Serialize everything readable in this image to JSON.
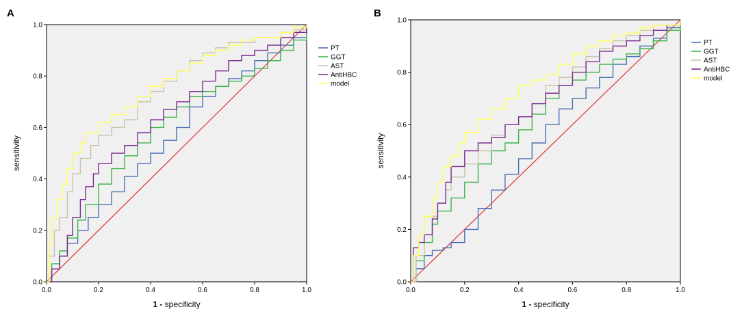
{
  "chart_data": [
    {
      "type": "line",
      "panel_label": "A",
      "xlabel_bold": "1 -",
      "xlabel_rest": " specificity",
      "ylabel": "sensitivity",
      "xlim": [
        0,
        1
      ],
      "ylim": [
        0,
        1
      ],
      "xticks": [
        "0.0",
        "0.2",
        "0.4",
        "0.6",
        "0.8",
        "1.0"
      ],
      "yticks": [
        "0.0",
        "0.2",
        "0.4",
        "0.6",
        "0.8",
        "1.0"
      ],
      "legend_position": "right",
      "reference_line": {
        "color": "#e03030",
        "points": [
          [
            0,
            0
          ],
          [
            1,
            1
          ]
        ]
      },
      "series": [
        {
          "name": "PT",
          "color": "#4a6fb5",
          "points": [
            [
              0,
              0
            ],
            [
              0.02,
              0.05
            ],
            [
              0.05,
              0.1
            ],
            [
              0.08,
              0.15
            ],
            [
              0.12,
              0.2
            ],
            [
              0.16,
              0.25
            ],
            [
              0.2,
              0.3
            ],
            [
              0.25,
              0.35
            ],
            [
              0.3,
              0.41
            ],
            [
              0.35,
              0.46
            ],
            [
              0.4,
              0.5
            ],
            [
              0.45,
              0.55
            ],
            [
              0.5,
              0.6
            ],
            [
              0.55,
              0.68
            ],
            [
              0.6,
              0.72
            ],
            [
              0.65,
              0.76
            ],
            [
              0.7,
              0.79
            ],
            [
              0.75,
              0.82
            ],
            [
              0.8,
              0.86
            ],
            [
              0.85,
              0.89
            ],
            [
              0.9,
              0.92
            ],
            [
              0.95,
              0.95
            ],
            [
              1,
              0.98
            ]
          ]
        },
        {
          "name": "GGT",
          "color": "#3cb44b",
          "points": [
            [
              0,
              0
            ],
            [
              0.02,
              0.07
            ],
            [
              0.05,
              0.12
            ],
            [
              0.08,
              0.17
            ],
            [
              0.12,
              0.24
            ],
            [
              0.15,
              0.3
            ],
            [
              0.2,
              0.38
            ],
            [
              0.25,
              0.44
            ],
            [
              0.3,
              0.49
            ],
            [
              0.35,
              0.54
            ],
            [
              0.4,
              0.6
            ],
            [
              0.45,
              0.64
            ],
            [
              0.5,
              0.68
            ],
            [
              0.55,
              0.72
            ],
            [
              0.6,
              0.74
            ],
            [
              0.65,
              0.76
            ],
            [
              0.7,
              0.78
            ],
            [
              0.75,
              0.8
            ],
            [
              0.8,
              0.83
            ],
            [
              0.85,
              0.86
            ],
            [
              0.9,
              0.9
            ],
            [
              0.95,
              0.94
            ],
            [
              1,
              1.0
            ]
          ]
        },
        {
          "name": "AST",
          "color": "#c8c3a8",
          "points": [
            [
              0,
              0
            ],
            [
              0.01,
              0.1
            ],
            [
              0.03,
              0.2
            ],
            [
              0.05,
              0.25
            ],
            [
              0.08,
              0.35
            ],
            [
              0.1,
              0.42
            ],
            [
              0.13,
              0.48
            ],
            [
              0.17,
              0.53
            ],
            [
              0.2,
              0.57
            ],
            [
              0.25,
              0.6
            ],
            [
              0.3,
              0.63
            ],
            [
              0.35,
              0.7
            ],
            [
              0.4,
              0.74
            ],
            [
              0.45,
              0.78
            ],
            [
              0.5,
              0.82
            ],
            [
              0.55,
              0.86
            ],
            [
              0.6,
              0.89
            ],
            [
              0.65,
              0.91
            ],
            [
              0.7,
              0.93
            ],
            [
              0.8,
              0.95
            ],
            [
              0.9,
              0.97
            ],
            [
              0.95,
              0.98
            ],
            [
              1,
              1.0
            ]
          ]
        },
        {
          "name": "AntiHBC",
          "color": "#7b2d8e",
          "points": [
            [
              0,
              0
            ],
            [
              0.02,
              0.05
            ],
            [
              0.05,
              0.1
            ],
            [
              0.08,
              0.18
            ],
            [
              0.1,
              0.25
            ],
            [
              0.13,
              0.32
            ],
            [
              0.15,
              0.37
            ],
            [
              0.18,
              0.42
            ],
            [
              0.2,
              0.46
            ],
            [
              0.25,
              0.5
            ],
            [
              0.3,
              0.53
            ],
            [
              0.35,
              0.58
            ],
            [
              0.4,
              0.63
            ],
            [
              0.45,
              0.67
            ],
            [
              0.5,
              0.7
            ],
            [
              0.55,
              0.74
            ],
            [
              0.6,
              0.78
            ],
            [
              0.65,
              0.82
            ],
            [
              0.7,
              0.86
            ],
            [
              0.75,
              0.88
            ],
            [
              0.8,
              0.9
            ],
            [
              0.85,
              0.92
            ],
            [
              0.9,
              0.95
            ],
            [
              0.95,
              0.97
            ],
            [
              1,
              1.0
            ]
          ]
        },
        {
          "name": "model",
          "color": "#ffff55",
          "points": [
            [
              0,
              0
            ],
            [
              0.01,
              0.15
            ],
            [
              0.02,
              0.25
            ],
            [
              0.04,
              0.32
            ],
            [
              0.06,
              0.38
            ],
            [
              0.08,
              0.44
            ],
            [
              0.1,
              0.5
            ],
            [
              0.13,
              0.54
            ],
            [
              0.15,
              0.58
            ],
            [
              0.2,
              0.62
            ],
            [
              0.25,
              0.65
            ],
            [
              0.3,
              0.68
            ],
            [
              0.35,
              0.72
            ],
            [
              0.4,
              0.76
            ],
            [
              0.45,
              0.79
            ],
            [
              0.5,
              0.82
            ],
            [
              0.55,
              0.85
            ],
            [
              0.6,
              0.88
            ],
            [
              0.65,
              0.9
            ],
            [
              0.7,
              0.92
            ],
            [
              0.75,
              0.94
            ],
            [
              0.8,
              0.95
            ],
            [
              0.9,
              0.97
            ],
            [
              0.95,
              0.99
            ],
            [
              1,
              1.0
            ]
          ]
        }
      ]
    },
    {
      "type": "line",
      "panel_label": "B",
      "xlabel_bold": "1 -",
      "xlabel_rest": " specificity",
      "ylabel": "sensitivity",
      "xlim": [
        0,
        1
      ],
      "ylim": [
        0,
        1
      ],
      "xticks": [
        "0.0",
        "0.2",
        "0.4",
        "0.6",
        "0.8",
        "1.0"
      ],
      "yticks": [
        "0.0",
        "0.2",
        "0.4",
        "0.6",
        "0.8",
        "1.0"
      ],
      "legend_position": "right",
      "reference_line": {
        "color": "#e03030",
        "points": [
          [
            0,
            0
          ],
          [
            1,
            1
          ]
        ]
      },
      "series": [
        {
          "name": "PT",
          "color": "#4a6fb5",
          "points": [
            [
              0,
              0
            ],
            [
              0.02,
              0.05
            ],
            [
              0.05,
              0.1
            ],
            [
              0.08,
              0.12
            ],
            [
              0.12,
              0.13
            ],
            [
              0.15,
              0.15
            ],
            [
              0.2,
              0.2
            ],
            [
              0.25,
              0.28
            ],
            [
              0.3,
              0.35
            ],
            [
              0.35,
              0.41
            ],
            [
              0.4,
              0.47
            ],
            [
              0.45,
              0.53
            ],
            [
              0.5,
              0.6
            ],
            [
              0.55,
              0.66
            ],
            [
              0.6,
              0.7
            ],
            [
              0.65,
              0.74
            ],
            [
              0.7,
              0.78
            ],
            [
              0.75,
              0.83
            ],
            [
              0.8,
              0.86
            ],
            [
              0.85,
              0.9
            ],
            [
              0.9,
              0.93
            ],
            [
              0.95,
              0.97
            ],
            [
              1,
              1.0
            ]
          ]
        },
        {
          "name": "GGT",
          "color": "#3cb44b",
          "points": [
            [
              0,
              0
            ],
            [
              0.02,
              0.08
            ],
            [
              0.05,
              0.15
            ],
            [
              0.08,
              0.22
            ],
            [
              0.1,
              0.27
            ],
            [
              0.15,
              0.32
            ],
            [
              0.2,
              0.38
            ],
            [
              0.25,
              0.45
            ],
            [
              0.3,
              0.5
            ],
            [
              0.35,
              0.53
            ],
            [
              0.4,
              0.58
            ],
            [
              0.45,
              0.64
            ],
            [
              0.5,
              0.7
            ],
            [
              0.55,
              0.75
            ],
            [
              0.6,
              0.77
            ],
            [
              0.65,
              0.8
            ],
            [
              0.7,
              0.83
            ],
            [
              0.75,
              0.85
            ],
            [
              0.8,
              0.87
            ],
            [
              0.85,
              0.89
            ],
            [
              0.9,
              0.92
            ],
            [
              0.95,
              0.96
            ],
            [
              1,
              1.0
            ]
          ]
        },
        {
          "name": "AST",
          "color": "#c8c3a8",
          "points": [
            [
              0,
              0
            ],
            [
              0.02,
              0.1
            ],
            [
              0.05,
              0.18
            ],
            [
              0.08,
              0.25
            ],
            [
              0.1,
              0.3
            ],
            [
              0.13,
              0.35
            ],
            [
              0.15,
              0.4
            ],
            [
              0.2,
              0.45
            ],
            [
              0.25,
              0.5
            ],
            [
              0.3,
              0.56
            ],
            [
              0.35,
              0.6
            ],
            [
              0.4,
              0.63
            ],
            [
              0.45,
              0.68
            ],
            [
              0.5,
              0.75
            ],
            [
              0.55,
              0.78
            ],
            [
              0.6,
              0.82
            ],
            [
              0.65,
              0.86
            ],
            [
              0.7,
              0.89
            ],
            [
              0.75,
              0.92
            ],
            [
              0.8,
              0.94
            ],
            [
              0.85,
              0.96
            ],
            [
              0.9,
              0.98
            ],
            [
              1,
              1.0
            ]
          ]
        },
        {
          "name": "AntiHBC",
          "color": "#7b2d8e",
          "points": [
            [
              0,
              0
            ],
            [
              0.01,
              0.13
            ],
            [
              0.03,
              0.15
            ],
            [
              0.05,
              0.18
            ],
            [
              0.08,
              0.24
            ],
            [
              0.1,
              0.3
            ],
            [
              0.13,
              0.38
            ],
            [
              0.15,
              0.44
            ],
            [
              0.2,
              0.5
            ],
            [
              0.25,
              0.53
            ],
            [
              0.3,
              0.55
            ],
            [
              0.35,
              0.6
            ],
            [
              0.4,
              0.63
            ],
            [
              0.45,
              0.68
            ],
            [
              0.5,
              0.72
            ],
            [
              0.55,
              0.75
            ],
            [
              0.6,
              0.8
            ],
            [
              0.65,
              0.84
            ],
            [
              0.7,
              0.88
            ],
            [
              0.75,
              0.9
            ],
            [
              0.8,
              0.92
            ],
            [
              0.85,
              0.94
            ],
            [
              0.9,
              0.96
            ],
            [
              0.95,
              0.98
            ],
            [
              1,
              1.0
            ]
          ]
        },
        {
          "name": "model",
          "color": "#ffff55",
          "points": [
            [
              0,
              0
            ],
            [
              0.01,
              0.1
            ],
            [
              0.03,
              0.18
            ],
            [
              0.05,
              0.25
            ],
            [
              0.08,
              0.32
            ],
            [
              0.1,
              0.38
            ],
            [
              0.12,
              0.44
            ],
            [
              0.15,
              0.48
            ],
            [
              0.18,
              0.53
            ],
            [
              0.2,
              0.57
            ],
            [
              0.25,
              0.62
            ],
            [
              0.3,
              0.66
            ],
            [
              0.35,
              0.7
            ],
            [
              0.4,
              0.75
            ],
            [
              0.45,
              0.77
            ],
            [
              0.5,
              0.79
            ],
            [
              0.55,
              0.83
            ],
            [
              0.6,
              0.87
            ],
            [
              0.65,
              0.9
            ],
            [
              0.7,
              0.92
            ],
            [
              0.75,
              0.94
            ],
            [
              0.8,
              0.95
            ],
            [
              0.85,
              0.97
            ],
            [
              0.9,
              0.98
            ],
            [
              1,
              1.0
            ]
          ]
        }
      ]
    }
  ]
}
